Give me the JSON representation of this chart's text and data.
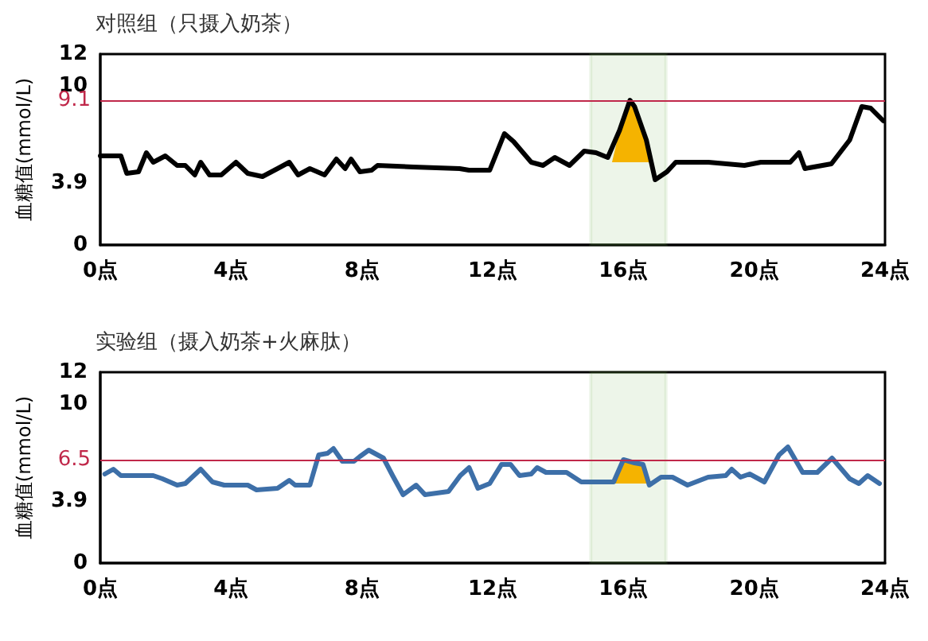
{
  "chart_data": [
    {
      "type": "line",
      "title": "对照组（只摄入奶茶）",
      "ylabel": "血糖值(mmol/L)",
      "xlim": [
        0,
        24
      ],
      "xticks": [
        {
          "value": 0,
          "label": "0点"
        },
        {
          "value": 4,
          "label": "4点"
        },
        {
          "value": 8,
          "label": "8点"
        },
        {
          "value": 12,
          "label": "12点"
        },
        {
          "value": 16,
          "label": "16点"
        },
        {
          "value": 20,
          "label": "20点"
        },
        {
          "value": 24,
          "label": "24点"
        }
      ],
      "ylim": [
        0,
        12
      ],
      "yticks": [
        0,
        3.9,
        10,
        12
      ],
      "grid": false,
      "series": [
        {
          "color": "#000000",
          "x": [
            0,
            0.63,
            0.81,
            1.17,
            1.41,
            1.62,
            1.99,
            2.35,
            2.6,
            2.89,
            3.07,
            3.34,
            3.7,
            4.15,
            4.51,
            4.96,
            5.42,
            5.78,
            6.05,
            6.41,
            6.86,
            7.22,
            7.49,
            7.67,
            7.94,
            8.3,
            8.48,
            9.57,
            10.99,
            11.28,
            11.91,
            12.36,
            12.64,
            13.18,
            13.54,
            13.9,
            14.35,
            14.8,
            15.16,
            15.52,
            15.88,
            16.2,
            16.34,
            16.7,
            16.97,
            17.33,
            17.6,
            18.6,
            19.7,
            20.2,
            21.1,
            21.37,
            21.55,
            22.36,
            22.92,
            23.29,
            23.56,
            23.95
          ],
          "values": [
            5.6,
            5.6,
            4.5,
            4.6,
            5.8,
            5.2,
            5.6,
            5.0,
            5.0,
            4.4,
            5.2,
            4.4,
            4.4,
            5.2,
            4.5,
            4.3,
            4.8,
            5.2,
            4.4,
            4.8,
            4.4,
            5.4,
            4.8,
            5.4,
            4.6,
            4.7,
            5.0,
            4.9,
            4.8,
            4.7,
            4.7,
            7.0,
            6.5,
            5.2,
            5.0,
            5.5,
            5.0,
            5.9,
            5.8,
            5.5,
            7.2,
            9.1,
            8.7,
            6.6,
            4.1,
            4.6,
            5.2,
            5.2,
            5.0,
            5.2,
            5.2,
            5.8,
            4.8,
            5.1,
            6.6,
            8.7,
            8.6,
            7.8
          ]
        },
        {
          "type": "area",
          "color": "#f5b300",
          "x": [
            15.65,
            15.88,
            16.2,
            16.34,
            16.7,
            16.9
          ],
          "values": [
            5.2,
            7.2,
            9.1,
            8.7,
            6.6,
            5.2
          ]
        }
      ],
      "ref_lines": [
        {
          "axis": "y",
          "value": 9.1,
          "label": "9.1",
          "color": "#c0284a"
        }
      ],
      "bands": [
        {
          "axis": "x",
          "from": 15,
          "to": 17.3,
          "color": "#6ab04c"
        }
      ]
    },
    {
      "type": "line",
      "title": "实验组（摄入奶茶+火麻肽）",
      "ylabel": "血糖值(mmol/L)",
      "xlim": [
        0,
        24
      ],
      "xticks": [
        {
          "value": 0,
          "label": "0点"
        },
        {
          "value": 4,
          "label": "4点"
        },
        {
          "value": 8,
          "label": "8点"
        },
        {
          "value": 12,
          "label": "12点"
        },
        {
          "value": 16,
          "label": "16点"
        },
        {
          "value": 20,
          "label": "20点"
        },
        {
          "value": 24,
          "label": "24点"
        }
      ],
      "ylim": [
        0,
        12
      ],
      "yticks": [
        0,
        3.9,
        10,
        12
      ],
      "grid": false,
      "series": [
        {
          "color": "#3d6fa8",
          "x": [
            0.14,
            0.4,
            0.63,
            1.62,
            1.9,
            2.35,
            2.6,
            3.07,
            3.43,
            3.79,
            4.51,
            4.78,
            5.42,
            5.78,
            5.96,
            6.41,
            6.68,
            6.95,
            7.13,
            7.4,
            7.76,
            7.94,
            8.21,
            8.66,
            8.94,
            9.26,
            9.66,
            9.93,
            10.65,
            11.01,
            11.28,
            11.55,
            11.91,
            12.27,
            12.55,
            12.82,
            13.18,
            13.36,
            13.63,
            14.26,
            14.71,
            15.7,
            16.0,
            16.34,
            16.6,
            16.79,
            17.15,
            17.5,
            17.96,
            18.59,
            19.13,
            19.31,
            19.58,
            19.86,
            20.31,
            20.76,
            21.03,
            21.48,
            21.93,
            22.38,
            22.92,
            23.2,
            23.47,
            23.83
          ],
          "values": [
            5.6,
            5.9,
            5.5,
            5.5,
            5.3,
            4.9,
            5.0,
            5.9,
            5.1,
            4.9,
            4.9,
            4.6,
            4.7,
            5.2,
            4.9,
            4.9,
            6.8,
            6.9,
            7.2,
            6.4,
            6.4,
            6.7,
            7.1,
            6.6,
            5.5,
            4.3,
            4.9,
            4.3,
            4.5,
            5.5,
            6.0,
            4.7,
            5.0,
            6.2,
            6.2,
            5.5,
            5.6,
            6.0,
            5.7,
            5.7,
            5.1,
            5.1,
            6.5,
            6.3,
            6.2,
            4.9,
            5.4,
            5.4,
            4.9,
            5.4,
            5.5,
            5.9,
            5.4,
            5.6,
            5.1,
            6.8,
            7.3,
            5.7,
            5.7,
            6.6,
            5.3,
            5.0,
            5.5,
            5.0
          ]
        },
        {
          "type": "area",
          "color": "#f5b300",
          "x": [
            15.72,
            16.0,
            16.34,
            16.6,
            16.85
          ],
          "values": [
            5.0,
            6.5,
            6.3,
            6.2,
            5.0
          ]
        }
      ],
      "ref_lines": [
        {
          "axis": "y",
          "value": 6.5,
          "label": "6.5",
          "color": "#c0284a"
        }
      ],
      "bands": [
        {
          "axis": "x",
          "from": 15,
          "to": 17.3,
          "color": "#6ab04c"
        }
      ]
    }
  ]
}
